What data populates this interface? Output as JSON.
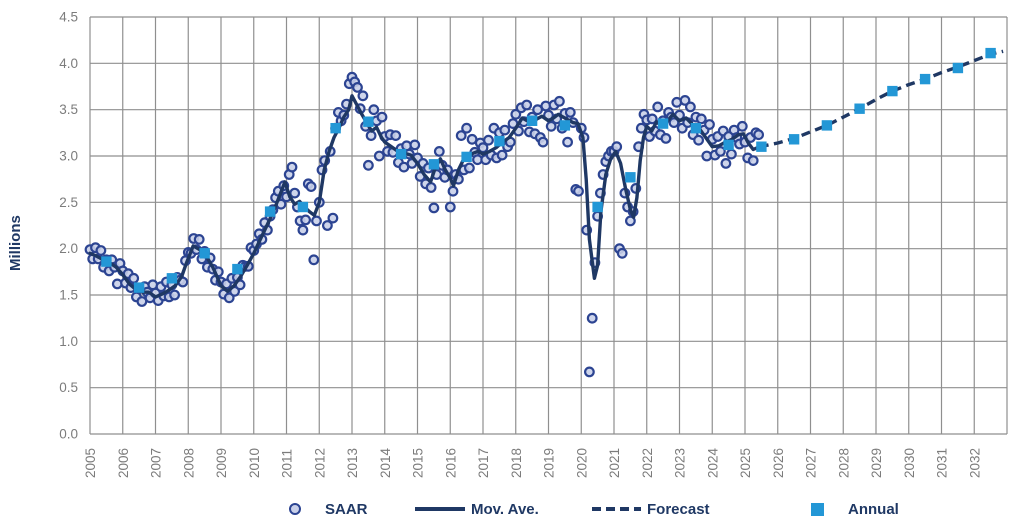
{
  "colors": {
    "navy": "#1f3864",
    "scatter_stroke": "#2c4492",
    "scatter_fill": "#c9d0e9",
    "annual_blue": "#2397d6",
    "grid": "#8f8f8f",
    "tick_text": "#7c7c7c",
    "background": "#ffffff"
  },
  "y_axis": {
    "title": "Millions",
    "tick_labels": [
      "0.0",
      "0.5",
      "1.0",
      "1.5",
      "2.0",
      "2.5",
      "3.0",
      "3.5",
      "4.0",
      "4.5"
    ],
    "min": 0,
    "max": 4.5,
    "step": 0.5
  },
  "x_axis": {
    "tick_labels": [
      "2005",
      "2006",
      "2007",
      "2008",
      "2009",
      "2010",
      "2011",
      "2012",
      "2013",
      "2014",
      "2015",
      "2016",
      "2017",
      "2018",
      "2019",
      "2020",
      "2021",
      "2022",
      "2023",
      "2024",
      "2025",
      "2026",
      "2027",
      "2028",
      "2029",
      "2030",
      "2031",
      "2032"
    ],
    "min": 2005,
    "max": 2033
  },
  "legend": {
    "saar": "SAAR",
    "mov_ave": "Mov. Ave.",
    "forecast": "Forecast",
    "annual": "Annual"
  },
  "chart_data": {
    "type": "scatter",
    "subtype": "combo: monthly scatter + moving-average line + dashed forecast + annual squares",
    "ylabel": "Millions",
    "ylim": [
      0,
      4.5
    ],
    "xlim": [
      2005,
      2033
    ],
    "grid": true,
    "legend_position": "bottom",
    "saar_monthly": {
      "2005": [
        1.99,
        1.89,
        2.01,
        1.89,
        1.98,
        1.8,
        1.88,
        1.76,
        1.88,
        1.8,
        1.62,
        1.84
      ],
      "2006": [
        1.76,
        1.63,
        1.73,
        1.58,
        1.68,
        1.48,
        1.57,
        1.43,
        1.59,
        1.53,
        1.47,
        1.61
      ],
      "2007": [
        1.52,
        1.44,
        1.59,
        1.49,
        1.64,
        1.48,
        1.61,
        1.5,
        1.69,
        1.66,
        1.64,
        1.87
      ],
      "2008": [
        1.96,
        1.95,
        2.11,
        1.99,
        2.1,
        1.89,
        1.97,
        1.8,
        1.9,
        1.78,
        1.66,
        1.75
      ],
      "2009": [
        1.64,
        1.51,
        1.62,
        1.47,
        1.68,
        1.54,
        1.69,
        1.61,
        1.82,
        1.81,
        1.81,
        2.01
      ],
      "2010": [
        1.98,
        2.05,
        2.16,
        2.1,
        2.28,
        2.2,
        2.35,
        2.42,
        2.55,
        2.62,
        2.48,
        2.68
      ],
      "2011": [
        2.56,
        2.8,
        2.88,
        2.6,
        2.45,
        2.3,
        2.2,
        2.31,
        2.7,
        2.67,
        1.88,
        2.3
      ],
      "2012": [
        2.5,
        2.85,
        2.95,
        2.25,
        3.05,
        2.33,
        3.3,
        3.47,
        3.38,
        3.44,
        3.56,
        3.78
      ],
      "2013": [
        3.85,
        3.8,
        3.74,
        3.51,
        3.65,
        3.32,
        2.9,
        3.22,
        3.5,
        3.38,
        3.0,
        3.42
      ],
      "2014": [
        3.21,
        3.05,
        3.23,
        3.04,
        3.22,
        2.93,
        3.08,
        2.88,
        3.11,
        3.02,
        2.92,
        3.12
      ],
      "2015": [
        2.98,
        2.78,
        2.92,
        2.7,
        2.87,
        2.66,
        2.44,
        2.8,
        3.05,
        2.9,
        2.77,
        2.85
      ],
      "2016": [
        2.45,
        2.62,
        2.8,
        2.75,
        3.22,
        2.85,
        3.3,
        2.87,
        3.18,
        3.04,
        2.96,
        3.14
      ],
      "2017": [
        3.09,
        2.96,
        3.17,
        3.01,
        3.3,
        2.98,
        3.25,
        3.01,
        3.28,
        3.1,
        3.15,
        3.35
      ],
      "2018": [
        3.45,
        3.27,
        3.52,
        3.37,
        3.55,
        3.26,
        3.42,
        3.24,
        3.5,
        3.2,
        3.15,
        3.54
      ],
      "2019": [
        3.44,
        3.32,
        3.55,
        3.4,
        3.59,
        3.3,
        3.46,
        3.15,
        3.47,
        3.36,
        2.64,
        2.62
      ],
      "2020": [
        3.3,
        3.2,
        2.2,
        0.67,
        1.25,
        1.85,
        2.35,
        2.6,
        2.8,
        2.94,
        3.0,
        3.05
      ],
      "2021": [
        3.05,
        3.1,
        2.0,
        1.95,
        2.6,
        2.45,
        2.3,
        2.4,
        2.65,
        3.1,
        3.3,
        3.45
      ],
      "2022": [
        3.39,
        3.21,
        3.4,
        3.27,
        3.53,
        3.23,
        3.38,
        3.19,
        3.47,
        3.42,
        3.36,
        3.58
      ],
      "2023": [
        3.44,
        3.3,
        3.6,
        3.36,
        3.53,
        3.23,
        3.42,
        3.17,
        3.4,
        3.28,
        3.0,
        3.34
      ],
      "2024": [
        3.18,
        3.01,
        3.21,
        3.05,
        3.27,
        2.92,
        3.21,
        3.02,
        3.28,
        3.2,
        3.13,
        3.32
      ],
      "2025": [
        3.15,
        2.98,
        3.2,
        2.95,
        3.25,
        3.23
      ]
    },
    "mov_ave": [
      [
        2005.0,
        1.95
      ],
      [
        2005.2,
        1.92
      ],
      [
        2005.4,
        1.88
      ],
      [
        2005.6,
        1.85
      ],
      [
        2005.8,
        1.8
      ],
      [
        2006.0,
        1.72
      ],
      [
        2006.2,
        1.62
      ],
      [
        2006.4,
        1.56
      ],
      [
        2006.6,
        1.53
      ],
      [
        2006.8,
        1.53
      ],
      [
        2007.0,
        1.48
      ],
      [
        2007.2,
        1.51
      ],
      [
        2007.4,
        1.55
      ],
      [
        2007.6,
        1.6
      ],
      [
        2007.8,
        1.7
      ],
      [
        2007.95,
        1.85
      ],
      [
        2008.15,
        2.03
      ],
      [
        2008.35,
        1.99
      ],
      [
        2008.55,
        1.92
      ],
      [
        2008.75,
        1.8
      ],
      [
        2009.0,
        1.6
      ],
      [
        2009.2,
        1.54
      ],
      [
        2009.4,
        1.6
      ],
      [
        2009.6,
        1.7
      ],
      [
        2009.8,
        1.82
      ],
      [
        2010.0,
        1.95
      ],
      [
        2010.2,
        2.1
      ],
      [
        2010.4,
        2.25
      ],
      [
        2010.6,
        2.4
      ],
      [
        2010.8,
        2.58
      ],
      [
        2010.95,
        2.72
      ],
      [
        2011.1,
        2.56
      ],
      [
        2011.25,
        2.48
      ],
      [
        2011.4,
        2.51
      ],
      [
        2011.55,
        2.45
      ],
      [
        2011.7,
        2.4
      ],
      [
        2011.85,
        2.36
      ],
      [
        2012.0,
        2.5
      ],
      [
        2012.15,
        2.85
      ],
      [
        2012.3,
        3.05
      ],
      [
        2012.45,
        3.2
      ],
      [
        2012.6,
        3.3
      ],
      [
        2012.75,
        3.42
      ],
      [
        2012.9,
        3.5
      ],
      [
        2013.0,
        3.65
      ],
      [
        2013.15,
        3.55
      ],
      [
        2013.3,
        3.45
      ],
      [
        2013.45,
        3.36
      ],
      [
        2013.6,
        3.27
      ],
      [
        2013.75,
        3.31
      ],
      [
        2013.9,
        3.2
      ],
      [
        2014.0,
        3.15
      ],
      [
        2014.2,
        3.1
      ],
      [
        2014.4,
        3.05
      ],
      [
        2014.6,
        3.03
      ],
      [
        2014.8,
        3.01
      ],
      [
        2015.0,
        2.92
      ],
      [
        2015.2,
        2.8
      ],
      [
        2015.4,
        2.72
      ],
      [
        2015.55,
        2.88
      ],
      [
        2015.7,
        2.97
      ],
      [
        2015.85,
        2.85
      ],
      [
        2016.0,
        2.76
      ],
      [
        2016.1,
        2.68
      ],
      [
        2016.25,
        2.85
      ],
      [
        2016.4,
        2.96
      ],
      [
        2016.55,
        3.0
      ],
      [
        2016.7,
        3.03
      ],
      [
        2016.85,
        3.05
      ],
      [
        2017.0,
        3.02
      ],
      [
        2017.2,
        3.05
      ],
      [
        2017.4,
        3.09
      ],
      [
        2017.6,
        3.15
      ],
      [
        2017.8,
        3.2
      ],
      [
        2018.0,
        3.3
      ],
      [
        2018.2,
        3.41
      ],
      [
        2018.35,
        3.38
      ],
      [
        2018.5,
        3.36
      ],
      [
        2018.65,
        3.4
      ],
      [
        2018.8,
        3.43
      ],
      [
        2019.0,
        3.38
      ],
      [
        2019.15,
        3.41
      ],
      [
        2019.3,
        3.45
      ],
      [
        2019.45,
        3.42
      ],
      [
        2019.6,
        3.39
      ],
      [
        2019.75,
        3.36
      ],
      [
        2019.9,
        3.35
      ],
      [
        2020.05,
        3.2
      ],
      [
        2020.15,
        2.75
      ],
      [
        2020.25,
        2.1
      ],
      [
        2020.4,
        1.68
      ],
      [
        2020.5,
        1.82
      ],
      [
        2020.6,
        2.4
      ],
      [
        2020.75,
        2.8
      ],
      [
        2020.9,
        2.97
      ],
      [
        2021.05,
        3.05
      ],
      [
        2021.2,
        2.92
      ],
      [
        2021.35,
        2.65
      ],
      [
        2021.5,
        2.42
      ],
      [
        2021.6,
        2.34
      ],
      [
        2021.7,
        2.55
      ],
      [
        2021.8,
        2.95
      ],
      [
        2021.9,
        3.2
      ],
      [
        2022.0,
        3.32
      ],
      [
        2022.15,
        3.27
      ],
      [
        2022.3,
        3.37
      ],
      [
        2022.45,
        3.32
      ],
      [
        2022.6,
        3.36
      ],
      [
        2022.8,
        3.45
      ],
      [
        2023.0,
        3.38
      ],
      [
        2023.2,
        3.41
      ],
      [
        2023.4,
        3.34
      ],
      [
        2023.6,
        3.3
      ],
      [
        2023.8,
        3.2
      ],
      [
        2024.0,
        3.1
      ],
      [
        2024.2,
        3.11
      ],
      [
        2024.4,
        3.15
      ],
      [
        2024.6,
        3.18
      ],
      [
        2024.8,
        3.23
      ],
      [
        2024.95,
        3.24
      ],
      [
        2025.1,
        3.14
      ],
      [
        2025.25,
        3.07
      ],
      [
        2025.45,
        3.1
      ]
    ],
    "forecast": [
      [
        2025.45,
        3.1
      ],
      [
        2026.0,
        3.14
      ],
      [
        2026.5,
        3.19
      ],
      [
        2027.0,
        3.26
      ],
      [
        2027.5,
        3.33
      ],
      [
        2028.0,
        3.42
      ],
      [
        2028.5,
        3.51
      ],
      [
        2029.0,
        3.61
      ],
      [
        2029.5,
        3.7
      ],
      [
        2030.0,
        3.77
      ],
      [
        2030.5,
        3.83
      ],
      [
        2031.0,
        3.9
      ],
      [
        2031.5,
        3.96
      ],
      [
        2032.0,
        4.03
      ],
      [
        2032.5,
        4.1
      ],
      [
        2032.88,
        4.13
      ]
    ],
    "annual": {
      "2005": 1.86,
      "2006": 1.58,
      "2007": 1.68,
      "2008": 1.95,
      "2009": 1.78,
      "2010": 2.4,
      "2011": 2.45,
      "2012": 3.3,
      "2013": 3.37,
      "2014": 3.02,
      "2015": 2.91,
      "2016": 2.99,
      "2017": 3.16,
      "2018": 3.38,
      "2019": 3.33,
      "2020": 2.45,
      "2021": 2.77,
      "2022": 3.35,
      "2023": 3.3,
      "2024": 3.12,
      "2025": 3.1,
      "2026": 3.18,
      "2027": 3.33,
      "2028": 3.51,
      "2029": 3.7,
      "2030": 3.83,
      "2031": 3.95,
      "2032": 4.11
    }
  }
}
